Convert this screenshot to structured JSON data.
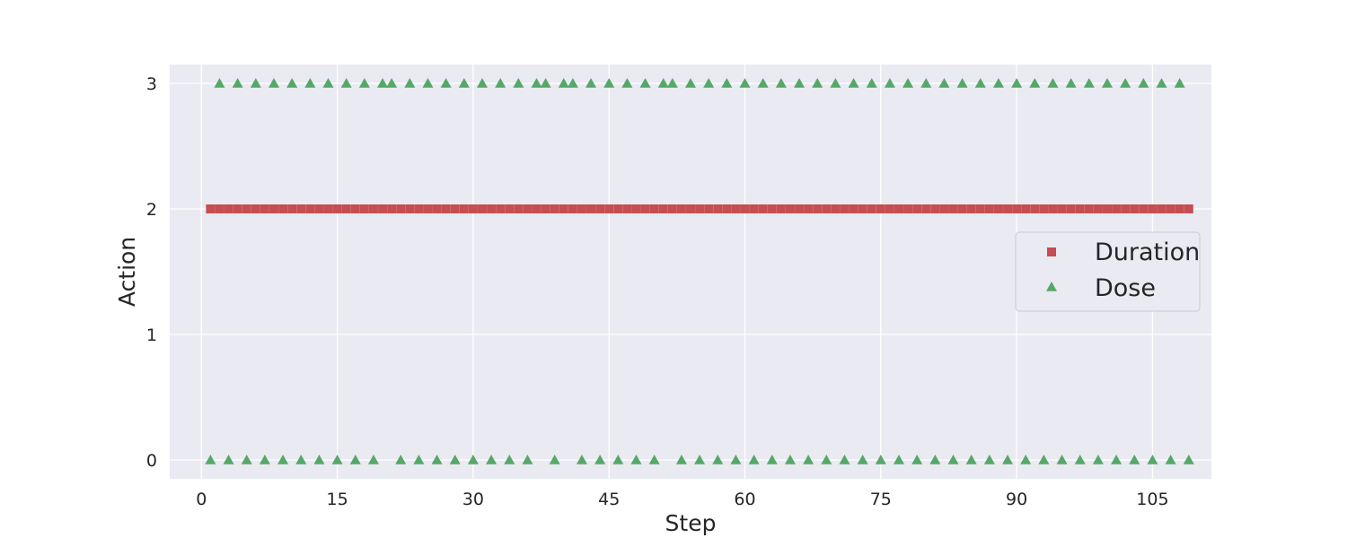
{
  "chart_data": {
    "type": "scatter",
    "title": "",
    "xlabel": "Step",
    "ylabel": "Action",
    "xlim": [
      -3.5,
      111.5
    ],
    "ylim": [
      -0.15,
      3.15
    ],
    "xticks": [
      0,
      15,
      30,
      45,
      60,
      75,
      90,
      105
    ],
    "yticks": [
      0,
      1,
      2,
      3
    ],
    "grid": true,
    "legend_position": "center-right",
    "colors": {
      "background": "#EAEAF2",
      "grid": "#FFFFFF",
      "duration": "#C44E52",
      "dose": "#55A868"
    },
    "series": [
      {
        "name": "Duration",
        "marker": "square",
        "x": [
          1,
          2,
          3,
          4,
          5,
          6,
          7,
          8,
          9,
          10,
          11,
          12,
          13,
          14,
          15,
          16,
          17,
          18,
          19,
          20,
          21,
          22,
          23,
          24,
          25,
          26,
          27,
          28,
          29,
          30,
          31,
          32,
          33,
          34,
          35,
          36,
          37,
          38,
          39,
          40,
          41,
          42,
          43,
          44,
          45,
          46,
          47,
          48,
          49,
          50,
          51,
          52,
          53,
          54,
          55,
          56,
          57,
          58,
          59,
          60,
          61,
          62,
          63,
          64,
          65,
          66,
          67,
          68,
          69,
          70,
          71,
          72,
          73,
          74,
          75,
          76,
          77,
          78,
          79,
          80,
          81,
          82,
          83,
          84,
          85,
          86,
          87,
          88,
          89,
          90,
          91,
          92,
          93,
          94,
          95,
          96,
          97,
          98,
          99,
          100,
          101,
          102,
          103,
          104,
          105,
          106,
          107,
          108,
          109
        ],
        "y": [
          2,
          2,
          2,
          2,
          2,
          2,
          2,
          2,
          2,
          2,
          2,
          2,
          2,
          2,
          2,
          2,
          2,
          2,
          2,
          2,
          2,
          2,
          2,
          2,
          2,
          2,
          2,
          2,
          2,
          2,
          2,
          2,
          2,
          2,
          2,
          2,
          2,
          2,
          2,
          2,
          2,
          2,
          2,
          2,
          2,
          2,
          2,
          2,
          2,
          2,
          2,
          2,
          2,
          2,
          2,
          2,
          2,
          2,
          2,
          2,
          2,
          2,
          2,
          2,
          2,
          2,
          2,
          2,
          2,
          2,
          2,
          2,
          2,
          2,
          2,
          2,
          2,
          2,
          2,
          2,
          2,
          2,
          2,
          2,
          2,
          2,
          2,
          2,
          2,
          2,
          2,
          2,
          2,
          2,
          2,
          2,
          2,
          2,
          2,
          2,
          2,
          2,
          2,
          2,
          2,
          2,
          2,
          2,
          2
        ]
      },
      {
        "name": "Dose",
        "marker": "triangle",
        "x": [
          1,
          2,
          3,
          4,
          5,
          6,
          7,
          8,
          9,
          10,
          11,
          12,
          13,
          14,
          15,
          16,
          17,
          18,
          19,
          20,
          21,
          22,
          23,
          24,
          25,
          26,
          27,
          28,
          29,
          30,
          31,
          32,
          33,
          34,
          35,
          36,
          37,
          38,
          39,
          40,
          41,
          42,
          43,
          44,
          45,
          46,
          47,
          48,
          49,
          50,
          51,
          52,
          53,
          54,
          55,
          56,
          57,
          58,
          59,
          60,
          61,
          62,
          63,
          64,
          65,
          66,
          67,
          68,
          69,
          70,
          71,
          72,
          73,
          74,
          75,
          76,
          77,
          78,
          79,
          80,
          81,
          82,
          83,
          84,
          85,
          86,
          87,
          88,
          89,
          90,
          91,
          92,
          93,
          94,
          95,
          96,
          97,
          98,
          99,
          100,
          101,
          102,
          103,
          104,
          105,
          106,
          107,
          108,
          109
        ],
        "y": [
          0,
          3,
          0,
          3,
          0,
          3,
          0,
          3,
          0,
          3,
          0,
          3,
          0,
          3,
          0,
          3,
          0,
          3,
          0,
          3,
          3,
          0,
          3,
          0,
          3,
          0,
          3,
          0,
          3,
          0,
          3,
          0,
          3,
          0,
          3,
          0,
          3,
          3,
          0,
          3,
          3,
          0,
          3,
          0,
          3,
          0,
          3,
          0,
          3,
          0,
          3,
          3,
          0,
          3,
          0,
          3,
          0,
          3,
          0,
          3,
          0,
          3,
          0,
          3,
          0,
          3,
          0,
          3,
          0,
          3,
          0,
          3,
          0,
          3,
          0,
          3,
          0,
          3,
          0,
          3,
          0,
          3,
          0,
          3,
          0,
          3,
          0,
          3,
          0,
          3,
          0,
          3,
          0,
          3,
          0,
          3,
          0,
          3,
          0,
          3,
          0,
          3,
          0,
          3,
          0,
          3,
          0,
          3,
          0
        ]
      }
    ]
  }
}
